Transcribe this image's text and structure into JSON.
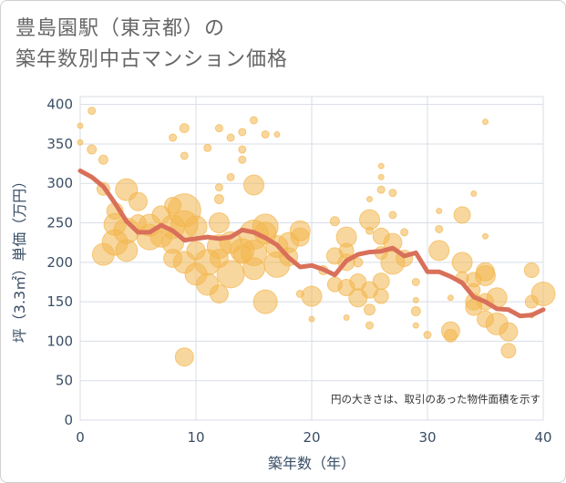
{
  "header": {
    "title_line1": "豊島園駅（東京都）の",
    "title_line2": "築年数別中古マンション価格"
  },
  "note": "円の大きさは、取引のあった物件面積を示す",
  "colors": {
    "bubble": "#f3b64e",
    "line": "#d9705a",
    "grid": "#d8dde6",
    "axis_text": "#3a4e66"
  },
  "chart_data": {
    "type": "scatter",
    "xlabel": "築年数（年）",
    "ylabel": "坪（3.3㎡）単価（万円）",
    "xlim": [
      0,
      40
    ],
    "ylim": [
      0,
      410
    ],
    "xticks": [
      0,
      10,
      20,
      30,
      40
    ],
    "yticks": [
      0,
      50,
      100,
      150,
      200,
      250,
      300,
      350,
      400
    ],
    "bubbles": [
      [
        0,
        373,
        3
      ],
      [
        0,
        352,
        3
      ],
      [
        1,
        392,
        4
      ],
      [
        1,
        343,
        5
      ],
      [
        2,
        330,
        5
      ],
      [
        2,
        293,
        7
      ],
      [
        2,
        210,
        12
      ],
      [
        3,
        248,
        12
      ],
      [
        3,
        225,
        14
      ],
      [
        3,
        265,
        9
      ],
      [
        4,
        292,
        12
      ],
      [
        4,
        240,
        14
      ],
      [
        4,
        215,
        12
      ],
      [
        5,
        277,
        10
      ],
      [
        5,
        250,
        9
      ],
      [
        6,
        247,
        12
      ],
      [
        6,
        232,
        14
      ],
      [
        7,
        260,
        10
      ],
      [
        7,
        233,
        12
      ],
      [
        8,
        272,
        9
      ],
      [
        8,
        245,
        13
      ],
      [
        8,
        225,
        12
      ],
      [
        8,
        205,
        10
      ],
      [
        8,
        358,
        4
      ],
      [
        9,
        370,
        5
      ],
      [
        9,
        266,
        18
      ],
      [
        9,
        248,
        15
      ],
      [
        9,
        200,
        12
      ],
      [
        9,
        80,
        10
      ],
      [
        9,
        335,
        4
      ],
      [
        10,
        245,
        12
      ],
      [
        10,
        215,
        10
      ],
      [
        10,
        185,
        12
      ],
      [
        11,
        200,
        14
      ],
      [
        11,
        172,
        12
      ],
      [
        11,
        345,
        4
      ],
      [
        12,
        370,
        4
      ],
      [
        12,
        295,
        4
      ],
      [
        12,
        280,
        5
      ],
      [
        12,
        250,
        11
      ],
      [
        12,
        220,
        13
      ],
      [
        12,
        205,
        10
      ],
      [
        12,
        160,
        10
      ],
      [
        13,
        225,
        12
      ],
      [
        13,
        185,
        15
      ],
      [
        13,
        358,
        4
      ],
      [
        13,
        308,
        4
      ],
      [
        14,
        365,
        4
      ],
      [
        14,
        343,
        4
      ],
      [
        14,
        330,
        4
      ],
      [
        14,
        215,
        13
      ],
      [
        14,
        210,
        10
      ],
      [
        15,
        380,
        4
      ],
      [
        15,
        298,
        11
      ],
      [
        15,
        235,
        16
      ],
      [
        15,
        212,
        14
      ],
      [
        15,
        192,
        12
      ],
      [
        16,
        362,
        4
      ],
      [
        16,
        245,
        14
      ],
      [
        16,
        237,
        12
      ],
      [
        16,
        150,
        13
      ],
      [
        17,
        197,
        14
      ],
      [
        17,
        362,
        3
      ],
      [
        17,
        220,
        12
      ],
      [
        18,
        225,
        11
      ],
      [
        18,
        207,
        10
      ],
      [
        19,
        240,
        11
      ],
      [
        19,
        232,
        10
      ],
      [
        19,
        160,
        4
      ],
      [
        20,
        157,
        11
      ],
      [
        20,
        128,
        3
      ],
      [
        21,
        190,
        5
      ],
      [
        22,
        252,
        5
      ],
      [
        22,
        208,
        9
      ],
      [
        22,
        172,
        8
      ],
      [
        23,
        232,
        11
      ],
      [
        23,
        215,
        8
      ],
      [
        23,
        200,
        9
      ],
      [
        23,
        168,
        9
      ],
      [
        23,
        130,
        3
      ],
      [
        24,
        200,
        5
      ],
      [
        24,
        175,
        9
      ],
      [
        24,
        155,
        10
      ],
      [
        25,
        254,
        11
      ],
      [
        25,
        240,
        4
      ],
      [
        25,
        165,
        9
      ],
      [
        25,
        140,
        6
      ],
      [
        25,
        120,
        4
      ],
      [
        25,
        280,
        3
      ],
      [
        26,
        322,
        3
      ],
      [
        26,
        308,
        3
      ],
      [
        26,
        292,
        4
      ],
      [
        26,
        233,
        9
      ],
      [
        26,
        212,
        7
      ],
      [
        26,
        176,
        9
      ],
      [
        26,
        157,
        8
      ],
      [
        27,
        288,
        4
      ],
      [
        27,
        260,
        4
      ],
      [
        27,
        225,
        10
      ],
      [
        27,
        200,
        13
      ],
      [
        28,
        238,
        4
      ],
      [
        28,
        205,
        9
      ],
      [
        29,
        175,
        4
      ],
      [
        29,
        152,
        3
      ],
      [
        29,
        138,
        5
      ],
      [
        29,
        120,
        3
      ],
      [
        30,
        108,
        4
      ],
      [
        31,
        265,
        3
      ],
      [
        31,
        242,
        4
      ],
      [
        31,
        215,
        11
      ],
      [
        32,
        155,
        3
      ],
      [
        32,
        113,
        10
      ],
      [
        32,
        107,
        7
      ],
      [
        33,
        260,
        9
      ],
      [
        33,
        200,
        11
      ],
      [
        33,
        180,
        7
      ],
      [
        34,
        287,
        3
      ],
      [
        34,
        178,
        8
      ],
      [
        34,
        165,
        7
      ],
      [
        34,
        150,
        9
      ],
      [
        34,
        143,
        9
      ],
      [
        35,
        378,
        3
      ],
      [
        35,
        233,
        3
      ],
      [
        35,
        188,
        10
      ],
      [
        35,
        183,
        11
      ],
      [
        35,
        150,
        9
      ],
      [
        35,
        128,
        9
      ],
      [
        36,
        155,
        11
      ],
      [
        36,
        122,
        12
      ],
      [
        37,
        112,
        10
      ],
      [
        37,
        88,
        8
      ],
      [
        39,
        190,
        8
      ],
      [
        39,
        150,
        7
      ],
      [
        39,
        133,
        3
      ],
      [
        40,
        160,
        13
      ]
    ],
    "series": [
      {
        "x": [
          0,
          1,
          2,
          3,
          4,
          5,
          6,
          7,
          8,
          9,
          10,
          11,
          12,
          13,
          14,
          15,
          16,
          17,
          18,
          19,
          20,
          21,
          22,
          23,
          24,
          25,
          26,
          27,
          28,
          29,
          30,
          31,
          32,
          33,
          34,
          35,
          36,
          37,
          38,
          39,
          40
        ],
        "values": [
          316,
          308,
          296,
          275,
          252,
          238,
          238,
          247,
          240,
          228,
          230,
          232,
          230,
          232,
          241,
          238,
          231,
          222,
          206,
          194,
          196,
          191,
          184,
          202,
          210,
          213,
          214,
          218,
          208,
          212,
          188,
          188,
          182,
          174,
          156,
          150,
          141,
          140,
          132,
          133,
          140
        ]
      }
    ]
  }
}
